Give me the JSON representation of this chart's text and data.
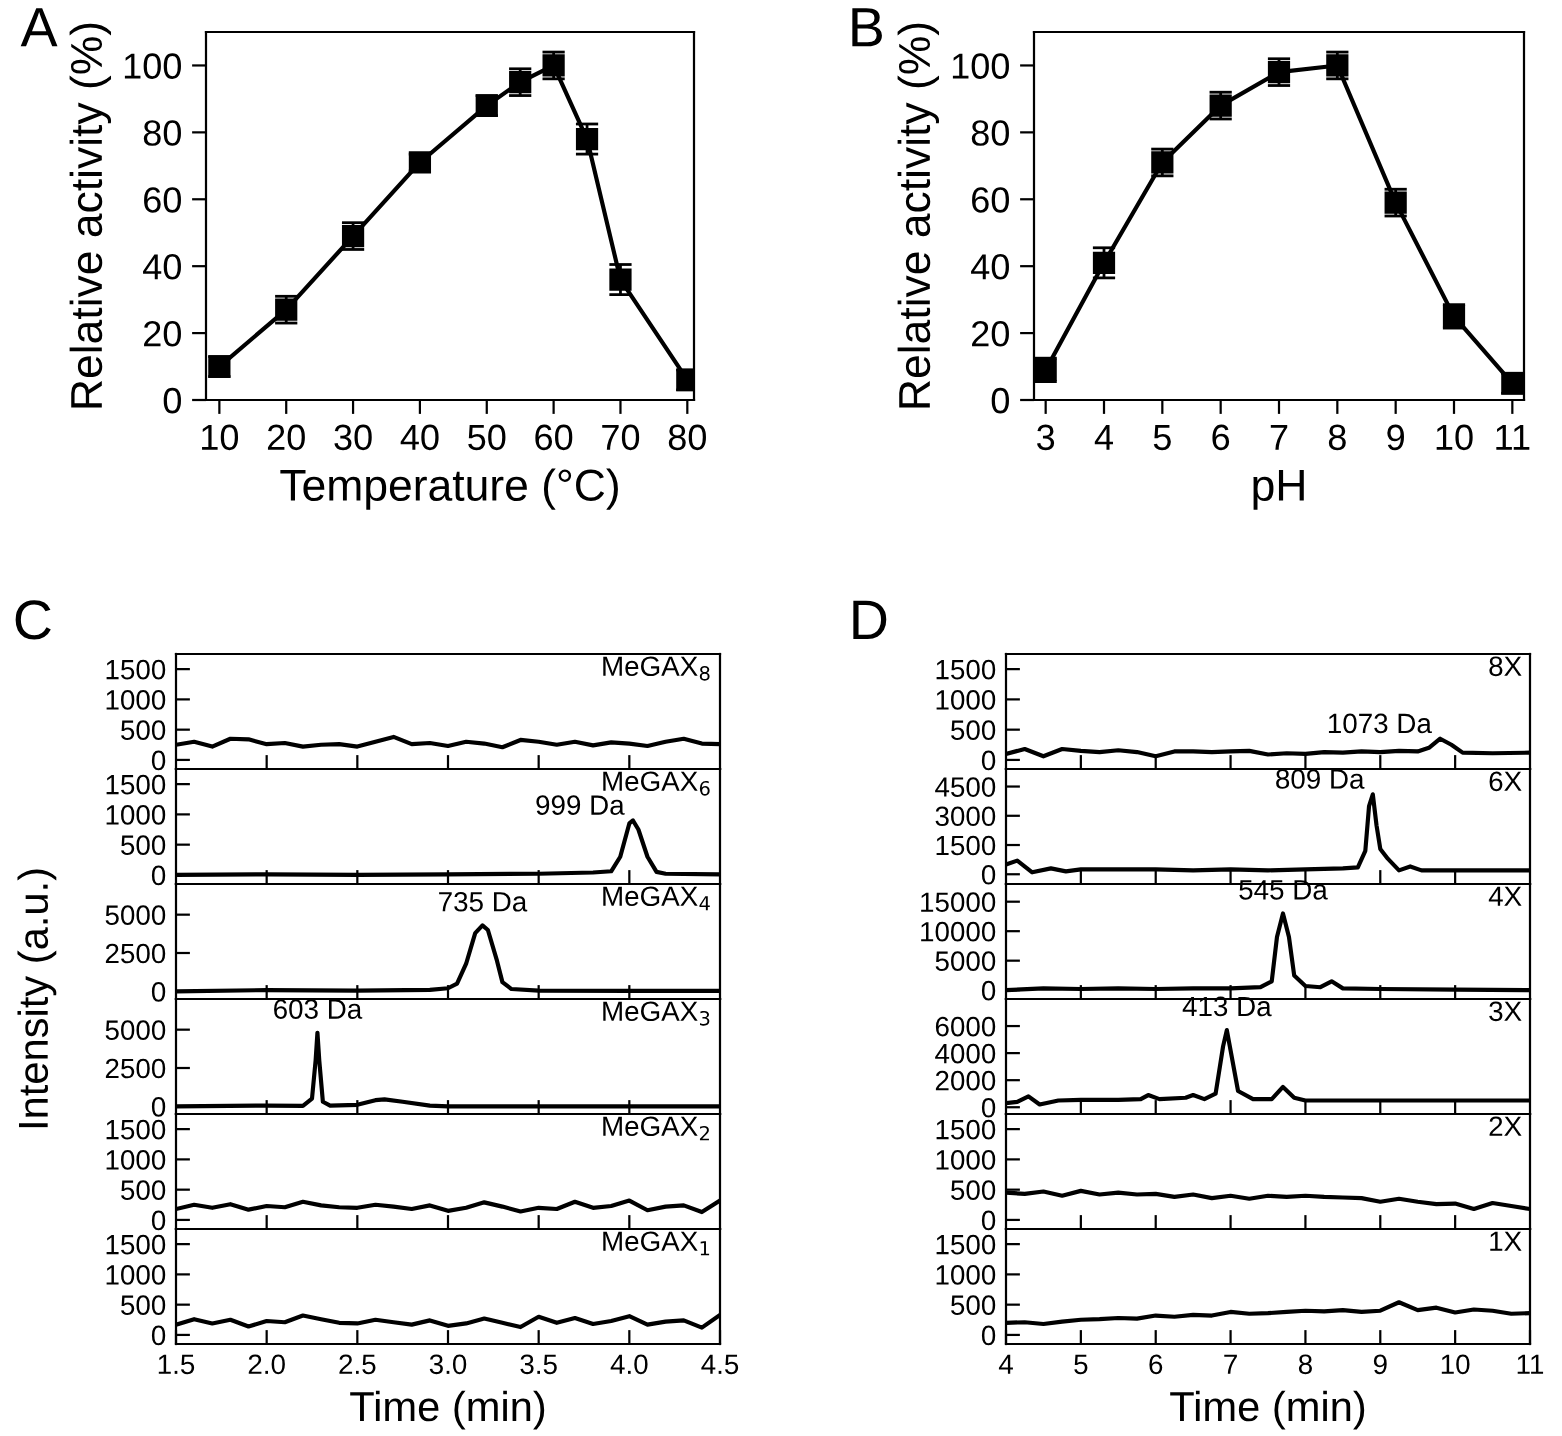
{
  "chart_data": [
    {
      "type": "line",
      "title": "A",
      "xlabel": "Temperature (°C)",
      "ylabel": "Relative activity (%)",
      "x": [
        10,
        20,
        30,
        40,
        50,
        55,
        60,
        65,
        70,
        80
      ],
      "series": [
        {
          "color": "#000000",
          "values": [
            10,
            27,
            49,
            71,
            88,
            95,
            100,
            78,
            36,
            6
          ],
          "errors": [
            3,
            4,
            4,
            2.5,
            3,
            4,
            4,
            4.5,
            4.5,
            3
          ]
        }
      ],
      "xlim": [
        8,
        81
      ],
      "xticks": [
        10,
        20,
        30,
        40,
        50,
        60,
        70,
        80
      ],
      "ylim": [
        0,
        110
      ],
      "yticks": [
        0,
        20,
        40,
        60,
        80,
        100
      ],
      "marker": "square",
      "line_style": "solid",
      "grid": false
    },
    {
      "type": "line",
      "title": "B",
      "xlabel": "pH",
      "ylabel": "Relative activity (%)",
      "x": [
        3,
        4,
        5,
        6,
        7,
        8,
        9,
        10,
        11
      ],
      "series": [
        {
          "color": "#000000",
          "values": [
            9,
            41,
            71,
            88,
            98,
            100,
            59,
            25,
            5
          ],
          "errors": [
            3.5,
            4.5,
            4,
            4,
            4,
            4,
            4,
            3.5,
            3
          ]
        }
      ],
      "xlim": [
        2.8,
        11.2
      ],
      "xticks": [
        3,
        4,
        5,
        6,
        7,
        8,
        9,
        10,
        11
      ],
      "ylim": [
        0,
        110
      ],
      "yticks": [
        0,
        20,
        40,
        60,
        80,
        100
      ],
      "marker": "square",
      "line_style": "solid",
      "grid": false
    },
    {
      "type": "line",
      "title": "C",
      "annotations": [
        "MeGAX$_{8}$"
      ],
      "x": [
        1.5,
        1.6,
        1.7,
        1.8,
        1.9,
        2.0,
        2.1,
        2.2,
        2.3,
        2.4,
        2.5,
        2.6,
        2.7,
        2.8,
        2.9,
        3.0,
        3.1,
        3.2,
        3.3,
        3.4,
        3.5,
        3.6,
        3.7,
        3.8,
        3.9,
        4.0,
        4.1,
        4.2,
        4.3,
        4.4,
        4.5
      ],
      "series": [
        {
          "color": "#000000",
          "values": [
            250,
            300,
            220,
            350,
            340,
            260,
            280,
            220,
            250,
            260,
            220,
            300,
            380,
            260,
            280,
            230,
            300,
            270,
            210,
            330,
            300,
            250,
            300,
            240,
            290,
            270,
            230,
            300,
            350,
            270,
            260
          ]
        }
      ],
      "xlim": [
        1.5,
        4.5
      ],
      "xticks": [
        {
          "value": 2,
          "label": null
        },
        {
          "value": 2.5,
          "label": null
        },
        {
          "value": 3,
          "label": null
        },
        {
          "value": 3.5,
          "label": null
        },
        {
          "value": 4,
          "label": null
        }
      ],
      "ylim": [
        -150,
        1750
      ],
      "yticks": [
        0,
        500,
        1000,
        1500
      ],
      "tick_labels": "y",
      "marker": "none",
      "line_style": "solid",
      "grid": false
    },
    {
      "type": "line",
      "annotations": [
        "MeGAX$_{6}$",
        {
          "text": "999 Da",
          "x": 4.02,
          "y": 900
        }
      ],
      "x": [
        1.5,
        2.0,
        2.5,
        3.0,
        3.5,
        3.8,
        3.9,
        3.95,
        4.0,
        4.02,
        4.05,
        4.1,
        4.15,
        4.2,
        4.5
      ],
      "series": [
        {
          "color": "#000000",
          "values": [
            0,
            10,
            0,
            10,
            20,
            40,
            60,
            300,
            850,
            900,
            750,
            300,
            50,
            20,
            10
          ]
        }
      ],
      "xlim": [
        1.5,
        4.5
      ],
      "xticks": [
        {
          "value": 2,
          "label": null
        },
        {
          "value": 2.5,
          "label": null
        },
        {
          "value": 3,
          "label": null
        },
        {
          "value": 3.5,
          "label": null
        },
        {
          "value": 4,
          "label": null
        }
      ],
      "ylim": [
        -150,
        1750
      ],
      "yticks": [
        0,
        500,
        1000,
        1500
      ],
      "tick_labels": "y",
      "marker": "none",
      "line_style": "solid",
      "grid": false
    },
    {
      "type": "line",
      "ylabel": "Intensity (a.u.)",
      "annotations": [
        "MeGAX$_{4}$",
        {
          "text": "735 Da",
          "x": 3.19,
          "y": 4300
        }
      ],
      "x": [
        1.5,
        2.0,
        2.5,
        2.9,
        3.0,
        3.05,
        3.1,
        3.15,
        3.19,
        3.22,
        3.27,
        3.3,
        3.35,
        3.5,
        4.0,
        4.5
      ],
      "series": [
        {
          "color": "#000000",
          "values": [
            0,
            80,
            50,
            100,
            200,
            500,
            1800,
            3800,
            4300,
            4000,
            2000,
            600,
            150,
            50,
            30,
            30
          ]
        }
      ],
      "xlim": [
        1.5,
        4.5
      ],
      "xticks": [
        {
          "value": 2,
          "label": null
        },
        {
          "value": 2.5,
          "label": null
        },
        {
          "value": 3,
          "label": null
        },
        {
          "value": 3.5,
          "label": null
        },
        {
          "value": 4,
          "label": null
        }
      ],
      "ylim": [
        -500,
        7000
      ],
      "yticks": [
        0,
        2500,
        5000
      ],
      "tick_labels": "y",
      "marker": "none",
      "line_style": "solid",
      "grid": false
    },
    {
      "type": "line",
      "annotations": [
        "MeGAX$_{3}$",
        {
          "text": "603 Da",
          "x": 2.28,
          "y": 4800
        }
      ],
      "x": [
        1.5,
        2.0,
        2.2,
        2.25,
        2.27,
        2.28,
        2.29,
        2.31,
        2.35,
        2.5,
        2.6,
        2.65,
        2.75,
        2.9,
        3.0,
        4.5
      ],
      "series": [
        {
          "color": "#000000",
          "values": [
            0,
            50,
            30,
            500,
            3000,
            4800,
            3000,
            300,
            50,
            100,
            400,
            450,
            300,
            50,
            0,
            0
          ]
        }
      ],
      "xlim": [
        1.5,
        4.5
      ],
      "xticks": [
        {
          "value": 2,
          "label": null
        },
        {
          "value": 2.5,
          "label": null
        },
        {
          "value": 3,
          "label": null
        },
        {
          "value": 3.5,
          "label": null
        },
        {
          "value": 4,
          "label": null
        }
      ],
      "ylim": [
        -500,
        7000
      ],
      "yticks": [
        0,
        2500,
        5000
      ],
      "tick_labels": "y",
      "marker": "none",
      "line_style": "solid",
      "grid": false
    },
    {
      "type": "line",
      "annotations": [
        "MeGAX$_{2}$"
      ],
      "x": [
        1.5,
        1.6,
        1.7,
        1.8,
        1.9,
        2.0,
        2.1,
        2.2,
        2.3,
        2.4,
        2.5,
        2.6,
        2.7,
        2.8,
        2.9,
        3.0,
        3.1,
        3.2,
        3.3,
        3.4,
        3.5,
        3.6,
        3.7,
        3.8,
        3.9,
        4.0,
        4.1,
        4.2,
        4.3,
        4.4,
        4.5
      ],
      "series": [
        {
          "color": "#000000",
          "values": [
            180,
            250,
            200,
            260,
            170,
            230,
            210,
            300,
            240,
            210,
            200,
            250,
            220,
            180,
            240,
            150,
            200,
            290,
            220,
            140,
            200,
            180,
            300,
            200,
            230,
            320,
            160,
            220,
            240,
            130,
            320
          ]
        }
      ],
      "xlim": [
        1.5,
        4.5
      ],
      "xticks": [
        {
          "value": 2,
          "label": null
        },
        {
          "value": 2.5,
          "label": null
        },
        {
          "value": 3,
          "label": null
        },
        {
          "value": 3.5,
          "label": null
        },
        {
          "value": 4,
          "label": null
        }
      ],
      "ylim": [
        -150,
        1750
      ],
      "yticks": [
        0,
        500,
        1000,
        1500
      ],
      "tick_labels": "y",
      "marker": "none",
      "line_style": "solid",
      "grid": false
    },
    {
      "type": "line",
      "xlabel": "Time (min)",
      "annotations": [
        "MeGAX$_{1}$"
      ],
      "x": [
        1.5,
        1.6,
        1.7,
        1.8,
        1.9,
        2.0,
        2.1,
        2.2,
        2.3,
        2.4,
        2.5,
        2.6,
        2.7,
        2.8,
        2.9,
        3.0,
        3.1,
        3.2,
        3.3,
        3.4,
        3.5,
        3.6,
        3.7,
        3.8,
        3.9,
        4.0,
        4.1,
        4.2,
        4.3,
        4.4,
        4.5
      ],
      "series": [
        {
          "color": "#000000",
          "values": [
            170,
            260,
            190,
            250,
            140,
            230,
            210,
            320,
            260,
            200,
            190,
            250,
            210,
            170,
            240,
            150,
            190,
            270,
            200,
            130,
            300,
            200,
            280,
            180,
            230,
            310,
            170,
            220,
            240,
            120,
            330
          ]
        }
      ],
      "xlim": [
        1.5,
        4.5
      ],
      "xticks": [
        1.5,
        {
          "value": 2,
          "label": "2.0"
        },
        2.5,
        {
          "value": 3,
          "label": "3.0"
        },
        3.5,
        {
          "value": 4,
          "label": "4.0"
        },
        4.5
      ],
      "ylim": [
        -150,
        1750
      ],
      "yticks": [
        0,
        500,
        1000,
        1500
      ],
      "marker": "none",
      "line_style": "solid",
      "grid": false
    },
    {
      "type": "line",
      "title": "D",
      "annotations": [
        "8X",
        {
          "text": "1073 Da",
          "x": 9.8,
          "y": 350
        }
      ],
      "x": [
        4.0,
        4.25,
        4.5,
        4.75,
        5.0,
        5.25,
        5.5,
        5.75,
        6.0,
        6.25,
        6.5,
        6.75,
        7.0,
        7.25,
        7.5,
        7.75,
        8.0,
        8.25,
        8.5,
        8.75,
        9.0,
        9.25,
        9.5,
        9.65,
        9.8,
        9.95,
        10.1,
        10.5,
        11.0
      ],
      "series": [
        {
          "color": "#000000",
          "values": [
            100,
            180,
            60,
            180,
            150,
            130,
            160,
            130,
            60,
            140,
            140,
            130,
            140,
            150,
            90,
            110,
            100,
            130,
            120,
            140,
            130,
            150,
            140,
            200,
            350,
            250,
            120,
            110,
            120
          ]
        }
      ],
      "xlim": [
        4,
        11
      ],
      "xticks": [
        5,
        6,
        7,
        8,
        9,
        10
      ],
      "ylim": [
        -150,
        1750
      ],
      "yticks": [
        0,
        500,
        1000,
        1500
      ],
      "tick_labels": "y",
      "marker": "none",
      "line_style": "solid",
      "grid": false
    },
    {
      "type": "line",
      "annotations": [
        "6X",
        {
          "text": "809 Da",
          "x": 8.9,
          "y": 4100
        }
      ],
      "x": [
        4.0,
        4.15,
        4.35,
        4.6,
        4.8,
        5.0,
        5.5,
        6.0,
        6.5,
        7.0,
        7.5,
        8.0,
        8.5,
        8.7,
        8.8,
        8.85,
        8.9,
        8.95,
        9.0,
        9.1,
        9.25,
        9.4,
        9.55,
        10.0,
        10.5,
        11.0
      ],
      "series": [
        {
          "color": "#000000",
          "values": [
            500,
            700,
            100,
            300,
            150,
            250,
            250,
            250,
            200,
            250,
            200,
            250,
            300,
            350,
            1200,
            3500,
            4100,
            2500,
            1300,
            800,
            200,
            400,
            200,
            200,
            200,
            200
          ]
        }
      ],
      "xlim": [
        4,
        11
      ],
      "xticks": [
        5,
        6,
        7,
        8,
        9,
        10
      ],
      "ylim": [
        -500,
        5400
      ],
      "yticks": [
        0,
        1500,
        3000,
        4500
      ],
      "tick_labels": "y",
      "marker": "none",
      "line_style": "solid",
      "grid": false
    },
    {
      "type": "line",
      "annotations": [
        "4X",
        {
          "text": "545 Da",
          "x": 7.7,
          "y": 13000
        }
      ],
      "x": [
        4.0,
        4.5,
        5.0,
        5.5,
        6.0,
        6.5,
        7.0,
        7.4,
        7.55,
        7.62,
        7.7,
        7.78,
        7.85,
        8.0,
        8.2,
        8.35,
        8.5,
        9.0,
        10.0,
        11.0
      ],
      "series": [
        {
          "color": "#000000",
          "values": [
            0,
            300,
            200,
            300,
            200,
            300,
            300,
            500,
            1500,
            9000,
            13000,
            9000,
            2500,
            700,
            500,
            1500,
            300,
            200,
            100,
            0
          ]
        }
      ],
      "xlim": [
        4,
        11
      ],
      "xticks": [
        5,
        6,
        7,
        8,
        9,
        10
      ],
      "ylim": [
        -1500,
        18000
      ],
      "yticks": [
        0,
        5000,
        10000,
        15000
      ],
      "tick_labels": "y",
      "marker": "none",
      "line_style": "solid",
      "grid": false
    },
    {
      "type": "line",
      "annotations": [
        "3X",
        {
          "text": "413 Da",
          "x": 6.95,
          "y": 5700
        }
      ],
      "x": [
        4.0,
        4.15,
        4.3,
        4.45,
        4.7,
        5.0,
        5.5,
        5.8,
        5.9,
        6.05,
        6.4,
        6.5,
        6.65,
        6.8,
        6.9,
        6.95,
        7.0,
        7.1,
        7.3,
        7.55,
        7.7,
        7.85,
        8.0,
        9.0,
        10.0,
        11.0
      ],
      "series": [
        {
          "color": "#000000",
          "values": [
            300,
            400,
            800,
            200,
            500,
            550,
            550,
            600,
            900,
            600,
            700,
            900,
            600,
            1000,
            4500,
            5700,
            4200,
            1200,
            600,
            600,
            1500,
            700,
            500,
            500,
            500,
            500
          ]
        }
      ],
      "xlim": [
        4,
        11
      ],
      "xticks": [
        5,
        6,
        7,
        8,
        9,
        10
      ],
      "ylim": [
        -500,
        8000
      ],
      "yticks": [
        0,
        2000,
        4000,
        6000
      ],
      "tick_labels": "y",
      "marker": "none",
      "line_style": "solid",
      "grid": false
    },
    {
      "type": "line",
      "annotations": [
        "2X"
      ],
      "x": [
        4.0,
        4.25,
        4.5,
        4.75,
        5.0,
        5.25,
        5.5,
        5.75,
        6.0,
        6.25,
        6.5,
        6.75,
        7.0,
        7.25,
        7.5,
        7.75,
        8.0,
        8.25,
        8.5,
        8.75,
        9.0,
        9.25,
        9.5,
        9.75,
        10.0,
        10.25,
        10.5,
        10.75,
        11.0
      ],
      "series": [
        {
          "color": "#000000",
          "values": [
            450,
            430,
            470,
            400,
            480,
            420,
            450,
            420,
            430,
            380,
            420,
            360,
            400,
            350,
            400,
            380,
            400,
            380,
            370,
            360,
            300,
            350,
            300,
            260,
            270,
            180,
            280,
            230,
            180
          ]
        }
      ],
      "xlim": [
        4,
        11
      ],
      "xticks": [
        5,
        6,
        7,
        8,
        9,
        10
      ],
      "ylim": [
        -150,
        1750
      ],
      "yticks": [
        0,
        500,
        1000,
        1500
      ],
      "tick_labels": "y",
      "marker": "none",
      "line_style": "solid",
      "grid": false
    },
    {
      "type": "line",
      "xlabel": "Time (min)",
      "annotations": [
        "1X"
      ],
      "x": [
        4.0,
        4.25,
        4.5,
        4.75,
        5.0,
        5.25,
        5.5,
        5.75,
        6.0,
        6.25,
        6.5,
        6.75,
        7.0,
        7.25,
        7.5,
        7.75,
        8.0,
        8.25,
        8.5,
        8.75,
        9.0,
        9.25,
        9.5,
        9.75,
        10.0,
        10.25,
        10.5,
        10.75,
        11.0
      ],
      "series": [
        {
          "color": "#000000",
          "values": [
            200,
            210,
            180,
            220,
            250,
            260,
            280,
            270,
            320,
            300,
            330,
            320,
            380,
            350,
            360,
            380,
            400,
            390,
            410,
            380,
            400,
            540,
            410,
            450,
            370,
            420,
            400,
            350,
            360
          ]
        }
      ],
      "xlim": [
        4,
        11
      ],
      "xticks": [
        4,
        5,
        6,
        7,
        8,
        9,
        10,
        11
      ],
      "ylim": [
        -150,
        1750
      ],
      "yticks": [
        0,
        500,
        1000,
        1500
      ],
      "marker": "none",
      "line_style": "solid",
      "grid": false
    }
  ]
}
